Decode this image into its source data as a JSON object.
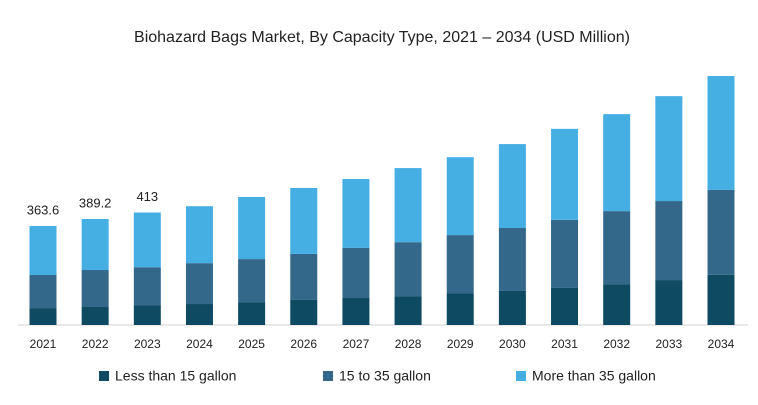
{
  "chart_data": {
    "type": "stacked-bar",
    "title": "Biohazard Bags Market, By Capacity Type, 2021 – 2034 (USD Million)",
    "categories": [
      "2021",
      "2022",
      "2023",
      "2024",
      "2025",
      "2026",
      "2027",
      "2028",
      "2029",
      "2030",
      "2031",
      "2032",
      "2033",
      "2034"
    ],
    "series": [
      {
        "name": "Less than 15 gallon",
        "color": "#0e4a62",
        "values": [
          62,
          66,
          73,
          77,
          84,
          92,
          99,
          106,
          117,
          125,
          136,
          150,
          165,
          184
        ]
      },
      {
        "name": "15 to 35 gallon",
        "color": "#33688a",
        "values": [
          121.6,
          135.8,
          139,
          150,
          158,
          169,
          184,
          198,
          213,
          231,
          250,
          268,
          290,
          312
        ]
      },
      {
        "name": "More than 35 gallon",
        "color": "#45aee3",
        "values": [
          180,
          187.4,
          201,
          209,
          228,
          242,
          253,
          272,
          286,
          308,
          334,
          356,
          385,
          418
        ]
      }
    ],
    "total_labels": [
      363.6,
      389.2,
      413
    ]
  }
}
